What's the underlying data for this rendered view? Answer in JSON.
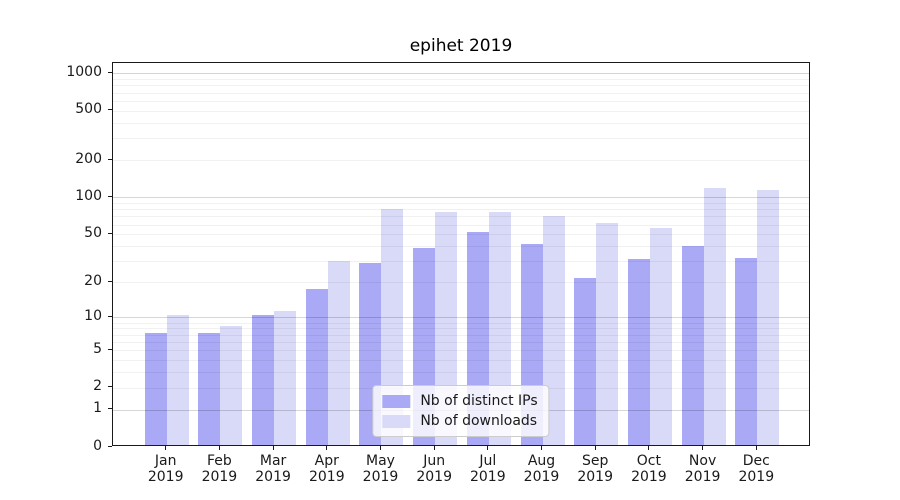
{
  "chart_data": {
    "type": "bar",
    "title": "epihet 2019",
    "categories": [
      "Jan",
      "Feb",
      "Mar",
      "Apr",
      "May",
      "Jun",
      "Jul",
      "Aug",
      "Sep",
      "Oct",
      "Nov",
      "Dec"
    ],
    "x_year_label": "2019",
    "series": [
      {
        "name": "Nb of distinct IPs",
        "color": "#a9a9f6",
        "values": [
          7,
          7,
          10,
          17,
          28,
          37,
          50,
          40,
          21,
          30,
          39,
          31
        ]
      },
      {
        "name": "Nb of downloads",
        "color": "#d9d9f8",
        "values": [
          10,
          8,
          11,
          29,
          78,
          73,
          74,
          68,
          60,
          54,
          114,
          110
        ]
      }
    ],
    "y_scale": "log1p",
    "y_ticks": [
      0,
      1,
      2,
      5,
      10,
      20,
      50,
      100,
      200,
      500,
      1000
    ],
    "y_major_gridlines": [
      1,
      10,
      100,
      1000
    ],
    "y_minor_gridlines": [
      2,
      3,
      4,
      5,
      6,
      7,
      8,
      9,
      20,
      30,
      40,
      50,
      60,
      70,
      80,
      90,
      200,
      300,
      400,
      500,
      600,
      700,
      800,
      900
    ],
    "ylim": [
      0,
      1210
    ],
    "grid": "horizontal",
    "legend_position": "lower center",
    "axis_color": "#1a1a1a",
    "background_color": "#ffffff"
  }
}
